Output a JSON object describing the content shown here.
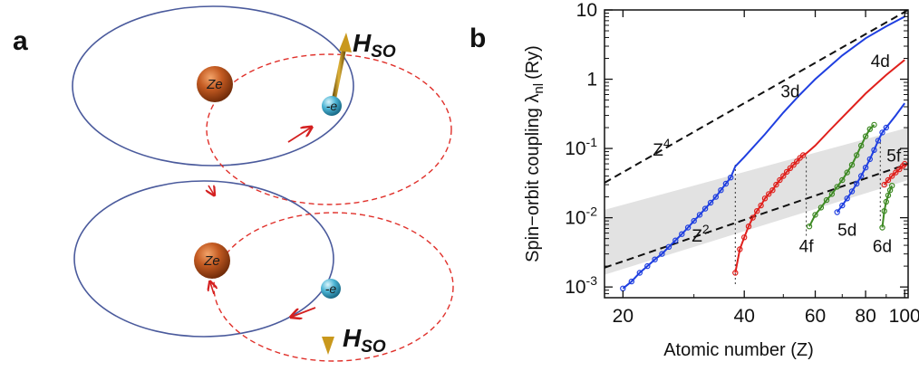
{
  "panel_a": {
    "letter": "a",
    "nucleus_label": "Ze",
    "electron_label": "-e",
    "hso_label": "H",
    "hso_sub": "SO",
    "colors": {
      "orbit": "#4a5a9c",
      "dashed_orbit": "#e0302a",
      "nucleus": "#b8501c",
      "electron": "#3aa6c8",
      "arrow": "#b8861a"
    }
  },
  "chart_data": {
    "type": "line",
    "panel_letter": "b",
    "xlabel": "Atomic number (Z)",
    "ylabel": "Spin−orbit coupling λ",
    "ylabel_sub": "nl",
    "ylabel_unit": "(Ry)",
    "x_scale": "log",
    "y_scale": "log",
    "xlim": [
      18,
      102
    ],
    "ylim": [
      0.0007,
      10
    ],
    "x_ticks": [
      20,
      40,
      60,
      80,
      100
    ],
    "x_tick_labels": [
      "20",
      "40",
      "60",
      "80",
      "100"
    ],
    "y_ticks": [
      0.001,
      0.01,
      0.1,
      1,
      10
    ],
    "y_tick_labels": [
      {
        "base": "10",
        "exp": "-3"
      },
      {
        "base": "10",
        "exp": "-2"
      },
      {
        "base": "10",
        "exp": "-1"
      },
      {
        "base": "1",
        "exp": ""
      },
      {
        "base": "10",
        "exp": ""
      }
    ],
    "grid": false,
    "shaded_band": {
      "lower": [
        [
          18,
          0.0015
        ],
        [
          102,
          0.035
        ]
      ],
      "upper": [
        [
          18,
          0.013
        ],
        [
          102,
          0.2
        ]
      ],
      "color": "#e2e2e2"
    },
    "reference_lines": [
      {
        "label": "Z",
        "label_exp": "4",
        "points": [
          [
            18,
            0.032
          ],
          [
            102,
            10
          ]
        ],
        "color": "#111111"
      },
      {
        "label": "Z",
        "label_exp": "2",
        "points": [
          [
            18,
            0.0019
          ],
          [
            102,
            0.06
          ]
        ],
        "color": "#111111"
      }
    ],
    "vertical_markers": [
      {
        "x": 38,
        "y_from": 0.0011,
        "y_to": 0.06
      },
      {
        "x": 57,
        "y_from": 0.0055,
        "y_to": 0.085
      },
      {
        "x": 87,
        "y_from": 0.009,
        "y_to": 0.13
      }
    ],
    "series": [
      {
        "name": "3d",
        "color": "#1f3fe0",
        "points": [
          [
            20,
            0.00095
          ],
          [
            21,
            0.0012
          ],
          [
            22,
            0.0016
          ],
          [
            23,
            0.002
          ],
          [
            24,
            0.0025
          ],
          [
            25,
            0.003
          ],
          [
            26,
            0.0038
          ],
          [
            27,
            0.0047
          ],
          [
            28,
            0.0058
          ],
          [
            29,
            0.0072
          ],
          [
            30,
            0.009
          ],
          [
            31,
            0.011
          ],
          [
            32,
            0.0135
          ],
          [
            33,
            0.0165
          ],
          [
            34,
            0.02
          ],
          [
            35,
            0.025
          ],
          [
            36,
            0.031
          ],
          [
            37,
            0.038
          ],
          [
            38,
            0.055
          ],
          [
            40,
            0.075
          ],
          [
            45,
            0.16
          ],
          [
            50,
            0.33
          ],
          [
            55,
            0.6
          ],
          [
            60,
            1.0
          ],
          [
            70,
            2.2
          ],
          [
            80,
            3.9
          ],
          [
            90,
            5.8
          ],
          [
            100,
            8
          ]
        ],
        "marked": 18
      },
      {
        "name": "4d",
        "color": "#e0201c",
        "points": [
          [
            38,
            0.0016
          ],
          [
            39,
            0.0035
          ],
          [
            40,
            0.0052
          ],
          [
            41,
            0.0075
          ],
          [
            42,
            0.01
          ],
          [
            43,
            0.0125
          ],
          [
            44,
            0.015
          ],
          [
            45,
            0.019
          ],
          [
            46,
            0.022
          ],
          [
            47,
            0.025
          ],
          [
            48,
            0.03
          ],
          [
            49,
            0.035
          ],
          [
            50,
            0.04
          ],
          [
            51,
            0.046
          ],
          [
            52,
            0.052
          ],
          [
            53,
            0.058
          ],
          [
            54,
            0.065
          ],
          [
            55,
            0.073
          ],
          [
            56,
            0.08
          ],
          [
            57,
            0.085
          ],
          [
            60,
            0.11
          ],
          [
            65,
            0.18
          ],
          [
            70,
            0.28
          ],
          [
            80,
            0.62
          ],
          [
            90,
            1.15
          ],
          [
            100,
            1.9
          ]
        ],
        "marked": 19
      },
      {
        "name": "4f",
        "color": "#3e8a24",
        "points": [
          [
            58,
            0.0075
          ],
          [
            60,
            0.011
          ],
          [
            62,
            0.014
          ],
          [
            64,
            0.018
          ],
          [
            66,
            0.022
          ],
          [
            68,
            0.028
          ],
          [
            70,
            0.035
          ],
          [
            72,
            0.045
          ],
          [
            74,
            0.058
          ],
          [
            76,
            0.08
          ],
          [
            78,
            0.11
          ],
          [
            80,
            0.15
          ],
          [
            82,
            0.19
          ],
          [
            84,
            0.22
          ]
        ],
        "marked": 14
      },
      {
        "name": "5d",
        "color": "#1f3fe0",
        "points": [
          [
            68,
            0.012
          ],
          [
            70,
            0.015
          ],
          [
            72,
            0.019
          ],
          [
            74,
            0.024
          ],
          [
            76,
            0.031
          ],
          [
            78,
            0.04
          ],
          [
            80,
            0.053
          ],
          [
            82,
            0.07
          ],
          [
            84,
            0.095
          ],
          [
            86,
            0.13
          ],
          [
            88,
            0.17
          ],
          [
            90,
            0.2
          ],
          [
            95,
            0.3
          ],
          [
            100,
            0.45
          ]
        ],
        "marked": 12
      },
      {
        "name": "5f",
        "color": "#e0201c",
        "points": [
          [
            89,
            0.03
          ],
          [
            91,
            0.035
          ],
          [
            93,
            0.04
          ],
          [
            95,
            0.045
          ],
          [
            97,
            0.05
          ],
          [
            99,
            0.056
          ],
          [
            100,
            0.06
          ]
        ],
        "marked": 7
      },
      {
        "name": "6d",
        "color": "#3e8a24",
        "points": [
          [
            88,
            0.0072
          ],
          [
            89,
            0.0125
          ],
          [
            90,
            0.017
          ],
          [
            91,
            0.021
          ],
          [
            92,
            0.025
          ],
          [
            93,
            0.029
          ]
        ],
        "marked": 6
      }
    ],
    "annotations": [
      {
        "id": "label-3d",
        "text": "3d",
        "x": 52,
        "y": 0.55
      },
      {
        "id": "label-4d",
        "text": "4d",
        "x": 87,
        "y": 1.5
      },
      {
        "id": "label-4f",
        "text": "4f",
        "x": 57,
        "y": 0.0032
      },
      {
        "id": "label-5d",
        "text": "5d",
        "x": 72,
        "y": 0.0055
      },
      {
        "id": "label-5f",
        "text": "5f",
        "x": 94,
        "y": 0.065
      },
      {
        "id": "label-6d",
        "text": "6d",
        "x": 88,
        "y": 0.0032
      }
    ]
  }
}
